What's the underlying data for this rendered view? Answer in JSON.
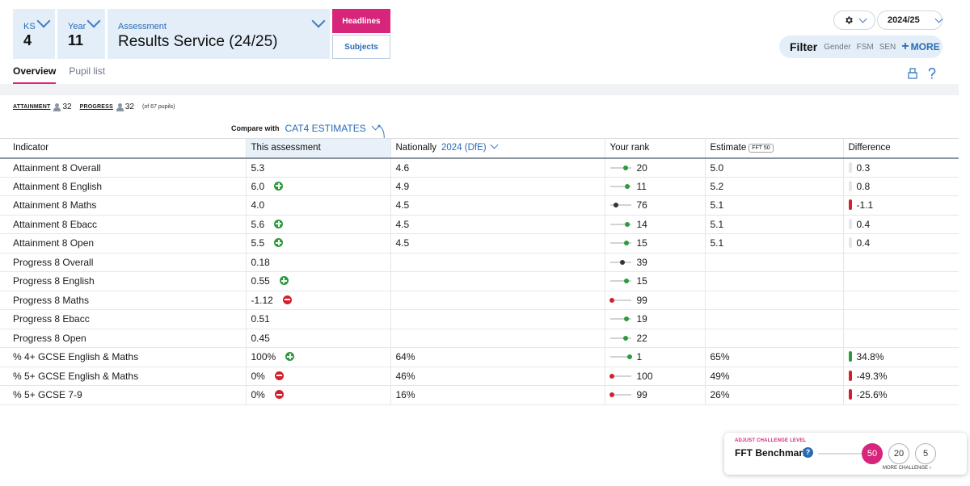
{
  "selectors": {
    "ks": {
      "label": "KS",
      "value": "4"
    },
    "year": {
      "label": "Year",
      "value": "11"
    },
    "assessment": {
      "label": "Assessment",
      "value": "Results Service (24/25)"
    }
  },
  "view_buttons": {
    "headlines": "Headlines",
    "subjects": "Subjects"
  },
  "top_right": {
    "year": "2024/25"
  },
  "filter": {
    "title": "Filter",
    "options": [
      "Gender",
      "FSM",
      "SEN"
    ],
    "more": "MORE"
  },
  "tabs": [
    "Overview",
    "Pupil list"
  ],
  "counts": {
    "attainment_label": "ATTAINMENT",
    "attainment": "32",
    "progress_label": "PROGRESS",
    "progress": "32",
    "of_pupils": "(of 67 pupils)"
  },
  "compare": {
    "label": "Compare with",
    "value": "CAT4 ESTIMATES"
  },
  "table": {
    "headers": {
      "indicator": "Indicator",
      "this_assessment": "This assessment",
      "nationally": "Nationally",
      "nationally_year": "2024 (DfE)",
      "your_rank": "Your rank",
      "estimate": "Estimate",
      "estimate_badge": "FFT 50",
      "difference": "Difference"
    },
    "rows": [
      {
        "indicator": "Attainment 8 Overall",
        "value": "5.3",
        "icon": "",
        "nationally": "4.6",
        "rank": "20",
        "estimate": "5.0",
        "difference": "0.3",
        "diff_sign": "neutral"
      },
      {
        "indicator": "Attainment 8 English",
        "value": "6.0",
        "icon": "plus",
        "nationally": "4.9",
        "rank": "11",
        "estimate": "5.2",
        "difference": "0.8",
        "diff_sign": "neutral"
      },
      {
        "indicator": "Attainment 8 Maths",
        "value": "4.0",
        "icon": "",
        "nationally": "4.5",
        "rank": "76",
        "estimate": "5.1",
        "difference": "-1.1",
        "diff_sign": "neg"
      },
      {
        "indicator": "Attainment 8 Ebacc",
        "value": "5.6",
        "icon": "plus",
        "nationally": "4.5",
        "rank": "14",
        "estimate": "5.1",
        "difference": "0.4",
        "diff_sign": "neutral"
      },
      {
        "indicator": "Attainment 8 Open",
        "value": "5.5",
        "icon": "plus",
        "nationally": "4.5",
        "rank": "15",
        "estimate": "5.1",
        "difference": "0.4",
        "diff_sign": "neutral"
      },
      {
        "indicator": "Progress 8 Overall",
        "value": "0.18",
        "icon": "",
        "nationally": "",
        "rank": "39",
        "estimate": "",
        "difference": "",
        "diff_sign": ""
      },
      {
        "indicator": "Progress 8 English",
        "value": "0.55",
        "icon": "plus",
        "nationally": "",
        "rank": "15",
        "estimate": "",
        "difference": "",
        "diff_sign": ""
      },
      {
        "indicator": "Progress 8 Maths",
        "value": "-1.12",
        "icon": "minus",
        "nationally": "",
        "rank": "99",
        "estimate": "",
        "difference": "",
        "diff_sign": ""
      },
      {
        "indicator": "Progress 8 Ebacc",
        "value": "0.51",
        "icon": "",
        "nationally": "",
        "rank": "19",
        "estimate": "",
        "difference": "",
        "diff_sign": ""
      },
      {
        "indicator": "Progress 8 Open",
        "value": "0.45",
        "icon": "",
        "nationally": "",
        "rank": "22",
        "estimate": "",
        "difference": "",
        "diff_sign": ""
      },
      {
        "indicator": "% 4+ GCSE English & Maths",
        "value": "100%",
        "icon": "plus",
        "nationally": "64%",
        "rank": "1",
        "estimate": "65%",
        "difference": "34.8%",
        "diff_sign": "pos"
      },
      {
        "indicator": "% 5+ GCSE English & Maths",
        "value": "0%",
        "icon": "minus",
        "nationally": "46%",
        "rank": "100",
        "estimate": "49%",
        "difference": "-49.3%",
        "diff_sign": "neg"
      },
      {
        "indicator": "% 5+ GCSE 7-9",
        "value": "0%",
        "icon": "minus",
        "nationally": "16%",
        "rank": "99",
        "estimate": "26%",
        "difference": "-25.6%",
        "diff_sign": "neg"
      }
    ]
  },
  "challenge": {
    "label": "ADJUST CHALLENGE LEVEL",
    "title": "FFT Benchmark",
    "help": "?",
    "levels": [
      "50",
      "20",
      "5"
    ],
    "selected": "50",
    "more": "MORE CHALLENGE"
  },
  "colors": {
    "accent": "#d6257a",
    "blue": "#2a6bb5",
    "positive": "#2e9a3e",
    "negative": "#d2212c"
  }
}
